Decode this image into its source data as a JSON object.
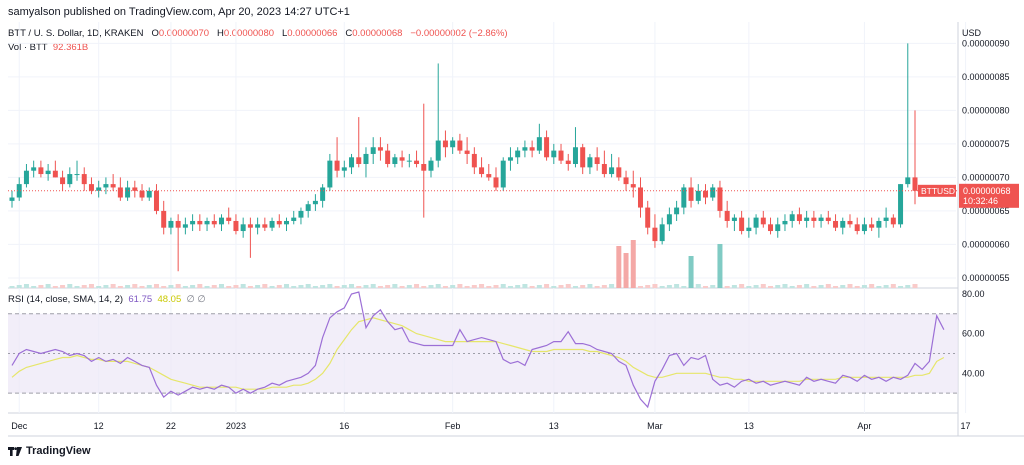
{
  "header": {
    "published": "samyalson published on TradingView.com, Apr 20, 2023 14:27 UTC+1"
  },
  "legend": {
    "symbol": "BTT / U. S. Dollar, 1D, KRAKEN",
    "o_label": "O",
    "o_value": "0.00000070",
    "h_label": "H",
    "h_value": "0.00000080",
    "l_label": "L",
    "l_value": "0.00000066",
    "c_label": "C",
    "c_value": "0.00000068",
    "change": "−0.00000002 (−2.86%)",
    "vol_label": "Vol · BTT",
    "vol_value": "92.361B"
  },
  "rsi_legend": {
    "label": "RSI (14, close, SMA, 14, 2)",
    "rsi": "61.75",
    "sma": "48.05",
    "icons": "∅ ∅"
  },
  "footer": {
    "brand": "TradingView"
  },
  "colors": {
    "up": "#26a69a",
    "down": "#ef5350",
    "rsi": "#9c6fd6",
    "rsi_ma": "#e6e66a",
    "band": "#ede7f6"
  },
  "chart_data": [
    {
      "type": "candlestick",
      "currency": "USD",
      "price_axis_ticks": [
        "0.00000090",
        "0.00000085",
        "0.00000080",
        "0.00000075",
        "0.00000070",
        "0.00000065",
        "0.00000060",
        "0.00000055"
      ],
      "ylim": [
        5.35e-07,
        9.05e-07
      ],
      "last_price_label": {
        "symbol": "BTTUSD",
        "price": "0.00000068",
        "countdown": "10:32:46"
      },
      "x_ticks": [
        "Dec",
        "12",
        "22",
        "2023",
        "16",
        "Feb",
        "13",
        "Mar",
        "13",
        "Apr",
        "17"
      ],
      "ohlc": [
        [
          6.65e-07,
          6.8e-07,
          6.55e-07,
          6.7e-07
        ],
        [
          6.7e-07,
          7e-07,
          6.65e-07,
          6.9e-07
        ],
        [
          6.9e-07,
          7.2e-07,
          6.85e-07,
          7.1e-07
        ],
        [
          7.1e-07,
          7.25e-07,
          7e-07,
          7.15e-07
        ],
        [
          7.15e-07,
          7.25e-07,
          7e-07,
          7.05e-07
        ],
        [
          7.05e-07,
          7.2e-07,
          6.95e-07,
          7.1e-07
        ],
        [
          7.1e-07,
          7.25e-07,
          7e-07,
          7e-07
        ],
        [
          7e-07,
          7.1e-07,
          6.8e-07,
          6.9e-07
        ],
        [
          6.9e-07,
          7.15e-07,
          6.85e-07,
          7.05e-07
        ],
        [
          7.05e-07,
          7.25e-07,
          6.95e-07,
          7.05e-07
        ],
        [
          7.05e-07,
          7.15e-07,
          6.8e-07,
          6.9e-07
        ],
        [
          6.9e-07,
          7e-07,
          6.75e-07,
          6.8e-07
        ],
        [
          6.8e-07,
          6.95e-07,
          6.7e-07,
          6.85e-07
        ],
        [
          6.85e-07,
          7e-07,
          6.75e-07,
          6.9e-07
        ],
        [
          6.9e-07,
          7.05e-07,
          6.8e-07,
          6.85e-07
        ],
        [
          6.85e-07,
          7e-07,
          6.65e-07,
          6.7e-07
        ],
        [
          6.7e-07,
          6.95e-07,
          6.65e-07,
          6.85e-07
        ],
        [
          6.85e-07,
          6.95e-07,
          6.7e-07,
          6.8e-07
        ],
        [
          6.8e-07,
          6.9e-07,
          6.65e-07,
          6.7e-07
        ],
        [
          6.7e-07,
          6.85e-07,
          6.65e-07,
          6.8e-07
        ],
        [
          6.8e-07,
          6.9e-07,
          6.45e-07,
          6.5e-07
        ],
        [
          6.5e-07,
          6.65e-07,
          6.15e-07,
          6.25e-07
        ],
        [
          6.25e-07,
          6.4e-07,
          6.15e-07,
          6.35e-07
        ],
        [
          6.35e-07,
          6.45e-07,
          5.6e-07,
          6.25e-07
        ],
        [
          6.25e-07,
          6.4e-07,
          6.15e-07,
          6.3e-07
        ],
        [
          6.3e-07,
          6.45e-07,
          6.2e-07,
          6.35e-07
        ],
        [
          6.35e-07,
          6.45e-07,
          6.2e-07,
          6.3e-07
        ],
        [
          6.3e-07,
          6.4e-07,
          6.2e-07,
          6.35e-07
        ],
        [
          6.35e-07,
          6.45e-07,
          6.25e-07,
          6.3e-07
        ],
        [
          6.3e-07,
          6.45e-07,
          6.2e-07,
          6.4e-07
        ],
        [
          6.4e-07,
          6.55e-07,
          6.3e-07,
          6.35e-07
        ],
        [
          6.35e-07,
          6.45e-07,
          6.15e-07,
          6.2e-07
        ],
        [
          6.2e-07,
          6.4e-07,
          6.1e-07,
          6.3e-07
        ],
        [
          6.3e-07,
          6.4e-07,
          5.8e-07,
          6.25e-07
        ],
        [
          6.25e-07,
          6.4e-07,
          6.15e-07,
          6.3e-07
        ],
        [
          6.3e-07,
          6.4e-07,
          6.2e-07,
          6.25e-07
        ],
        [
          6.25e-07,
          6.4e-07,
          6.2e-07,
          6.35e-07
        ],
        [
          6.35e-07,
          6.45e-07,
          6.25e-07,
          6.3e-07
        ],
        [
          6.3e-07,
          6.4e-07,
          6.2e-07,
          6.35e-07
        ],
        [
          6.35e-07,
          6.5e-07,
          6.3e-07,
          6.4e-07
        ],
        [
          6.4e-07,
          6.55e-07,
          6.3e-07,
          6.5e-07
        ],
        [
          6.5e-07,
          6.65e-07,
          6.4e-07,
          6.6e-07
        ],
        [
          6.6e-07,
          6.75e-07,
          6.5e-07,
          6.65e-07
        ],
        [
          6.65e-07,
          6.9e-07,
          6.55e-07,
          6.85e-07
        ],
        [
          6.85e-07,
          7.35e-07,
          6.8e-07,
          7.25e-07
        ],
        [
          7.25e-07,
          7.6e-07,
          7e-07,
          7.1e-07
        ],
        [
          7.1e-07,
          7.25e-07,
          7e-07,
          7.15e-07
        ],
        [
          7.15e-07,
          7.35e-07,
          7.05e-07,
          7.3e-07
        ],
        [
          7.3e-07,
          7.9e-07,
          7.15e-07,
          7.2e-07
        ],
        [
          7.2e-07,
          7.45e-07,
          7e-07,
          7.35e-07
        ],
        [
          7.35e-07,
          7.6e-07,
          7.2e-07,
          7.45e-07
        ],
        [
          7.45e-07,
          7.6e-07,
          7.25e-07,
          7.4e-07
        ],
        [
          7.4e-07,
          7.5e-07,
          7.15e-07,
          7.2e-07
        ],
        [
          7.2e-07,
          7.35e-07,
          7.15e-07,
          7.3e-07
        ],
        [
          7.3e-07,
          7.4e-07,
          7.15e-07,
          7.25e-07
        ],
        [
          7.25e-07,
          7.35e-07,
          7.15e-07,
          7.25e-07
        ],
        [
          7.25e-07,
          7.4e-07,
          7.15e-07,
          7.2e-07
        ],
        [
          7.2e-07,
          8.1e-07,
          6.4e-07,
          7.1e-07
        ],
        [
          7.1e-07,
          7.3e-07,
          7e-07,
          7.25e-07
        ],
        [
          7.25e-07,
          8.7e-07,
          7.15e-07,
          7.55e-07
        ],
        [
          7.55e-07,
          7.7e-07,
          7.3e-07,
          7.45e-07
        ],
        [
          7.45e-07,
          7.6e-07,
          7.35e-07,
          7.55e-07
        ],
        [
          7.55e-07,
          7.65e-07,
          7.35e-07,
          7.4e-07
        ],
        [
          7.4e-07,
          7.6e-07,
          7.2e-07,
          7.35e-07
        ],
        [
          7.35e-07,
          7.45e-07,
          7.05e-07,
          7.15e-07
        ],
        [
          7.15e-07,
          7.3e-07,
          7e-07,
          7.05e-07
        ],
        [
          7.05e-07,
          7.2e-07,
          6.95e-07,
          7e-07
        ],
        [
          7e-07,
          7.15e-07,
          6.8e-07,
          6.85e-07
        ],
        [
          6.85e-07,
          7.3e-07,
          6.8e-07,
          7.25e-07
        ],
        [
          7.25e-07,
          7.45e-07,
          7.1e-07,
          7.3e-07
        ],
        [
          7.3e-07,
          7.45e-07,
          7.2e-07,
          7.4e-07
        ],
        [
          7.4e-07,
          7.55e-07,
          7.3e-07,
          7.45e-07
        ],
        [
          7.45e-07,
          7.55e-07,
          7.3e-07,
          7.4e-07
        ],
        [
          7.4e-07,
          7.8e-07,
          7.35e-07,
          7.6e-07
        ],
        [
          7.6e-07,
          7.7e-07,
          7.25e-07,
          7.3e-07
        ],
        [
          7.3e-07,
          7.5e-07,
          7.2e-07,
          7.4e-07
        ],
        [
          7.4e-07,
          7.5e-07,
          7.2e-07,
          7.25e-07
        ],
        [
          7.25e-07,
          7.35e-07,
          7.1e-07,
          7.2e-07
        ],
        [
          7.2e-07,
          7.75e-07,
          7.15e-07,
          7.45e-07
        ],
        [
          7.45e-07,
          7.5e-07,
          7.05e-07,
          7.15e-07
        ],
        [
          7.15e-07,
          7.35e-07,
          7.05e-07,
          7.3e-07
        ],
        [
          7.3e-07,
          7.45e-07,
          7.1e-07,
          7.2e-07
        ],
        [
          7.2e-07,
          7.4e-07,
          7e-07,
          7.05e-07
        ],
        [
          7.05e-07,
          7.35e-07,
          7e-07,
          7.15e-07
        ],
        [
          7.15e-07,
          7.3e-07,
          6.95e-07,
          7e-07
        ],
        [
          7e-07,
          7.1e-07,
          6.8e-07,
          6.9e-07
        ],
        [
          6.9e-07,
          7.1e-07,
          6.7e-07,
          6.85e-07
        ],
        [
          6.85e-07,
          7e-07,
          6.4e-07,
          6.55e-07
        ],
        [
          6.55e-07,
          6.65e-07,
          6.15e-07,
          6.25e-07
        ],
        [
          6.25e-07,
          6.45e-07,
          5.95e-07,
          6.05e-07
        ],
        [
          6.05e-07,
          6.4e-07,
          6e-07,
          6.3e-07
        ],
        [
          6.3e-07,
          6.55e-07,
          6.2e-07,
          6.45e-07
        ],
        [
          6.45e-07,
          6.65e-07,
          6.35e-07,
          6.55e-07
        ],
        [
          6.55e-07,
          6.9e-07,
          6.45e-07,
          6.85e-07
        ],
        [
          6.85e-07,
          7e-07,
          6.55e-07,
          6.65e-07
        ],
        [
          6.65e-07,
          6.9e-07,
          6.6e-07,
          6.8e-07
        ],
        [
          6.8e-07,
          6.9e-07,
          6.6e-07,
          6.7e-07
        ],
        [
          6.7e-07,
          6.9e-07,
          6.65e-07,
          6.85e-07
        ],
        [
          6.85e-07,
          6.95e-07,
          6.4e-07,
          6.5e-07
        ],
        [
          6.5e-07,
          6.65e-07,
          6.25e-07,
          6.35e-07
        ],
        [
          6.35e-07,
          6.45e-07,
          6.2e-07,
          6.4e-07
        ],
        [
          6.4e-07,
          6.5e-07,
          6.15e-07,
          6.2e-07
        ],
        [
          6.2e-07,
          6.4e-07,
          6.1e-07,
          6.25e-07
        ],
        [
          6.25e-07,
          6.45e-07,
          6.15e-07,
          6.4e-07
        ],
        [
          6.4e-07,
          6.5e-07,
          6.25e-07,
          6.3e-07
        ],
        [
          6.3e-07,
          6.4e-07,
          6.15e-07,
          6.2e-07
        ],
        [
          6.2e-07,
          6.4e-07,
          6.1e-07,
          6.3e-07
        ],
        [
          6.3e-07,
          6.45e-07,
          6.2e-07,
          6.35e-07
        ],
        [
          6.35e-07,
          6.5e-07,
          6.25e-07,
          6.45e-07
        ],
        [
          6.45e-07,
          6.55e-07,
          6.3e-07,
          6.35e-07
        ],
        [
          6.35e-07,
          6.5e-07,
          6.25e-07,
          6.4e-07
        ],
        [
          6.4e-07,
          6.5e-07,
          6.25e-07,
          6.35e-07
        ],
        [
          6.35e-07,
          6.45e-07,
          6.25e-07,
          6.4e-07
        ],
        [
          6.4e-07,
          6.5e-07,
          6.3e-07,
          6.35e-07
        ],
        [
          6.35e-07,
          6.45e-07,
          6.2e-07,
          6.25e-07
        ],
        [
          6.25e-07,
          6.4e-07,
          6.15e-07,
          6.35e-07
        ],
        [
          6.35e-07,
          6.45e-07,
          6.25e-07,
          6.3e-07
        ],
        [
          6.3e-07,
          6.4e-07,
          6.15e-07,
          6.2e-07
        ],
        [
          6.2e-07,
          6.4e-07,
          6.15e-07,
          6.3e-07
        ],
        [
          6.3e-07,
          6.4e-07,
          6.2e-07,
          6.25e-07
        ],
        [
          6.25e-07,
          6.4e-07,
          6.1e-07,
          6.35e-07
        ],
        [
          6.35e-07,
          6.55e-07,
          6.25e-07,
          6.4e-07
        ],
        [
          6.4e-07,
          6.45e-07,
          6.25e-07,
          6.3e-07
        ],
        [
          6.3e-07,
          6.9e-07,
          6.25e-07,
          6.9e-07
        ],
        [
          6.9e-07,
          9e-07,
          6.85e-07,
          7e-07
        ],
        [
          7e-07,
          8e-07,
          6.6e-07,
          6.8e-07
        ]
      ],
      "volume_spikes": {
        "84": "down",
        "85": "down",
        "86": "down",
        "94": "up",
        "98": "up"
      }
    },
    {
      "type": "line",
      "name": "RSI (14, close, SMA, 14, 2)",
      "yticks": [
        "80.00",
        "60.00",
        "40.00"
      ],
      "ylim": [
        20,
        82
      ],
      "bands": [
        70,
        50,
        30
      ],
      "rsi": [
        44,
        50,
        52,
        51,
        50,
        51,
        52,
        51,
        49,
        50,
        49,
        46,
        48,
        46,
        47,
        45,
        48,
        46,
        44,
        43,
        34,
        28,
        31,
        29,
        31,
        33,
        32,
        33,
        32,
        34,
        33,
        30,
        32,
        30,
        32,
        33,
        35,
        34,
        36,
        37,
        38,
        40,
        44,
        58,
        68,
        71,
        73,
        80,
        81,
        63,
        69,
        72,
        66,
        62,
        63,
        56,
        55,
        54,
        54,
        54,
        54,
        54,
        62,
        56,
        57,
        58,
        57,
        56,
        47,
        45,
        46,
        44,
        52,
        53,
        54,
        56,
        56,
        61,
        55,
        55,
        54,
        52,
        51,
        50,
        46,
        44,
        34,
        27,
        23,
        36,
        42,
        49,
        50,
        44,
        48,
        47,
        49,
        37,
        34,
        35,
        33,
        36,
        37,
        35,
        36,
        34,
        35,
        36,
        35,
        34,
        38,
        36,
        37,
        36,
        35,
        39,
        38,
        36,
        39,
        37,
        38,
        36,
        38,
        37,
        39,
        45,
        42,
        46,
        69,
        62
      ],
      "sma": [
        38,
        41,
        43,
        44,
        45,
        46,
        47,
        48,
        48,
        49,
        48,
        47,
        47,
        46,
        46,
        46,
        46,
        45,
        44,
        43,
        41,
        39,
        37,
        36,
        35,
        34,
        33,
        33,
        33,
        33,
        33,
        33,
        32,
        32,
        32,
        32,
        33,
        33,
        33,
        34,
        34,
        35,
        37,
        40,
        45,
        52,
        57,
        62,
        66,
        67,
        68,
        67,
        66,
        65,
        64,
        62,
        60,
        59,
        58,
        57,
        56,
        56,
        56,
        56,
        56,
        56,
        56,
        56,
        55,
        54,
        53,
        52,
        51,
        51,
        51,
        52,
        52,
        52,
        52,
        52,
        51,
        51,
        50,
        49,
        48,
        46,
        43,
        41,
        39,
        38,
        38,
        39,
        40,
        40,
        40,
        40,
        40,
        39,
        38,
        38,
        37,
        37,
        36,
        36,
        36,
        36,
        36,
        36,
        36,
        36,
        37,
        37,
        37,
        37,
        37,
        38,
        38,
        38,
        38,
        38,
        38,
        38,
        38,
        38,
        38,
        39,
        39,
        40,
        46,
        48
      ]
    }
  ]
}
